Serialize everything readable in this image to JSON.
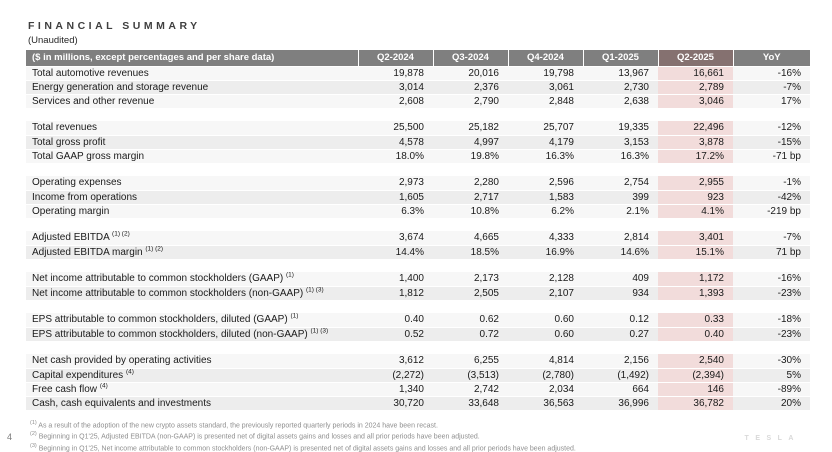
{
  "title": "FINANCIAL SUMMARY",
  "subtitle": "(Unaudited)",
  "page_number": "4",
  "watermark": "TESLA",
  "colors": {
    "header_bg": "#7f7f7f",
    "highlight_header_bg": "#857170",
    "highlight_cell_bg": "#f2dcdb",
    "stripe_light": "#f7f7f7",
    "stripe_dark": "#ededed"
  },
  "table": {
    "columns": [
      "($ in millions, except percentages and per share data)",
      "Q2-2024",
      "Q3-2024",
      "Q4-2024",
      "Q1-2025",
      "Q2-2025",
      "YoY"
    ],
    "highlight_column": "Q2-2025",
    "sections": [
      {
        "rows": [
          {
            "label": "Total automotive revenues",
            "sup": "",
            "values": [
              "19,878",
              "20,016",
              "19,798",
              "13,967",
              "16,661"
            ],
            "yoy": "-16%"
          },
          {
            "label": "Energy generation and storage revenue",
            "sup": "",
            "values": [
              "3,014",
              "2,376",
              "3,061",
              "2,730",
              "2,789"
            ],
            "yoy": "-7%"
          },
          {
            "label": "Services and other revenue",
            "sup": "",
            "values": [
              "2,608",
              "2,790",
              "2,848",
              "2,638",
              "3,046"
            ],
            "yoy": "17%"
          }
        ]
      },
      {
        "rows": [
          {
            "label": "Total revenues",
            "sup": "",
            "values": [
              "25,500",
              "25,182",
              "25,707",
              "19,335",
              "22,496"
            ],
            "yoy": "-12%"
          },
          {
            "label": "Total gross profit",
            "sup": "",
            "values": [
              "4,578",
              "4,997",
              "4,179",
              "3,153",
              "3,878"
            ],
            "yoy": "-15%"
          },
          {
            "label": "Total GAAP gross margin",
            "sup": "",
            "values": [
              "18.0%",
              "19.8%",
              "16.3%",
              "16.3%",
              "17.2%"
            ],
            "yoy": "-71 bp"
          }
        ]
      },
      {
        "rows": [
          {
            "label": "Operating expenses",
            "sup": "",
            "values": [
              "2,973",
              "2,280",
              "2,596",
              "2,754",
              "2,955"
            ],
            "yoy": "-1%"
          },
          {
            "label": "Income from operations",
            "sup": "",
            "values": [
              "1,605",
              "2,717",
              "1,583",
              "399",
              "923"
            ],
            "yoy": "-42%"
          },
          {
            "label": "Operating margin",
            "sup": "",
            "values": [
              "6.3%",
              "10.8%",
              "6.2%",
              "2.1%",
              "4.1%"
            ],
            "yoy": "-219 bp"
          }
        ]
      },
      {
        "rows": [
          {
            "label": "Adjusted EBITDA",
            "sup": "(1) (2)",
            "values": [
              "3,674",
              "4,665",
              "4,333",
              "2,814",
              "3,401"
            ],
            "yoy": "-7%"
          },
          {
            "label": "Adjusted EBITDA margin",
            "sup": "(1) (2)",
            "values": [
              "14.4%",
              "18.5%",
              "16.9%",
              "14.6%",
              "15.1%"
            ],
            "yoy": "71 bp"
          }
        ]
      },
      {
        "rows": [
          {
            "label": "Net income attributable to common stockholders (GAAP)",
            "sup": "(1)",
            "values": [
              "1,400",
              "2,173",
              "2,128",
              "409",
              "1,172"
            ],
            "yoy": "-16%"
          },
          {
            "label": "Net income attributable to common stockholders (non-GAAP)",
            "sup": "(1) (3)",
            "values": [
              "1,812",
              "2,505",
              "2,107",
              "934",
              "1,393"
            ],
            "yoy": "-23%"
          }
        ]
      },
      {
        "rows": [
          {
            "label": "EPS attributable to common stockholders, diluted (GAAP)",
            "sup": "(1)",
            "values": [
              "0.40",
              "0.62",
              "0.60",
              "0.12",
              "0.33"
            ],
            "yoy": "-18%"
          },
          {
            "label": "EPS attributable to common stockholders, diluted (non-GAAP)",
            "sup": "(1) (3)",
            "values": [
              "0.52",
              "0.72",
              "0.60",
              "0.27",
              "0.40"
            ],
            "yoy": "-23%"
          }
        ]
      },
      {
        "rows": [
          {
            "label": "Net cash provided by operating activities",
            "sup": "",
            "values": [
              "3,612",
              "6,255",
              "4,814",
              "2,156",
              "2,540"
            ],
            "yoy": "-30%"
          },
          {
            "label": "Capital expenditures",
            "sup": "(4)",
            "values": [
              "(2,272)",
              "(3,513)",
              "(2,780)",
              "(1,492)",
              "(2,394)"
            ],
            "yoy": "5%"
          },
          {
            "label": "Free cash flow",
            "sup": "(4)",
            "values": [
              "1,340",
              "2,742",
              "2,034",
              "664",
              "146"
            ],
            "yoy": "-89%"
          },
          {
            "label": "Cash, cash equivalents and investments",
            "sup": "",
            "values": [
              "30,720",
              "33,648",
              "36,563",
              "36,996",
              "36,782"
            ],
            "yoy": "20%"
          }
        ]
      }
    ]
  },
  "footnotes": [
    {
      "sup": "(1)",
      "text": "As a result of the adoption of the new crypto assets standard, the previously reported quarterly periods in 2024 have been recast."
    },
    {
      "sup": "(2)",
      "text": "Beginning in Q1'25, Adjusted EBITDA (non-GAAP) is presented net of digital assets gains and losses and all prior periods have been adjusted."
    },
    {
      "sup": "(3)",
      "text": "Beginning in Q1'25, Net income attributable to common stockholders (non-GAAP) is presented net of digital assets gains and losses and all prior periods have been adjusted."
    }
  ]
}
